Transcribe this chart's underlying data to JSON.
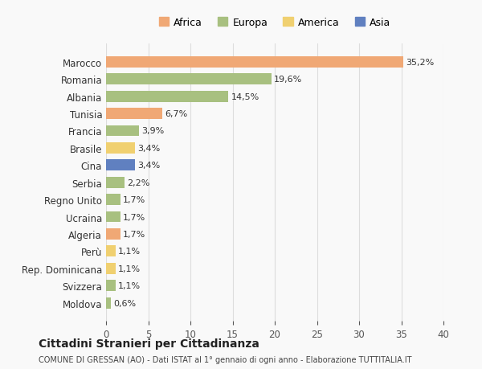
{
  "countries": [
    "Marocco",
    "Romania",
    "Albania",
    "Tunisia",
    "Francia",
    "Brasile",
    "Cina",
    "Serbia",
    "Regno Unito",
    "Ucraina",
    "Algeria",
    "Perù",
    "Rep. Dominicana",
    "Svizzera",
    "Moldova"
  ],
  "values": [
    35.2,
    19.6,
    14.5,
    6.7,
    3.9,
    3.4,
    3.4,
    2.2,
    1.7,
    1.7,
    1.7,
    1.1,
    1.1,
    1.1,
    0.6
  ],
  "labels": [
    "35,2%",
    "19,6%",
    "14,5%",
    "6,7%",
    "3,9%",
    "3,4%",
    "3,4%",
    "2,2%",
    "1,7%",
    "1,7%",
    "1,7%",
    "1,1%",
    "1,1%",
    "1,1%",
    "0,6%"
  ],
  "continents": [
    "Africa",
    "Europa",
    "Europa",
    "Africa",
    "Europa",
    "America",
    "Asia",
    "Europa",
    "Europa",
    "Europa",
    "Africa",
    "America",
    "America",
    "Europa",
    "Europa"
  ],
  "colors": {
    "Africa": "#F0A875",
    "Europa": "#A8C080",
    "America": "#F0D070",
    "Asia": "#6080C0"
  },
  "legend_order": [
    "Africa",
    "Europa",
    "America",
    "Asia"
  ],
  "title": "Cittadini Stranieri per Cittadinanza",
  "subtitle": "COMUNE DI GRESSAN (AO) - Dati ISTAT al 1° gennaio di ogni anno - Elaborazione TUTTITALIA.IT",
  "xlabel_ticks": [
    0,
    5,
    10,
    15,
    20,
    25,
    30,
    35,
    40
  ],
  "xlim": [
    0,
    40
  ],
  "background_color": "#f9f9f9",
  "plot_background": "#f9f9f9",
  "grid_color": "#dddddd"
}
